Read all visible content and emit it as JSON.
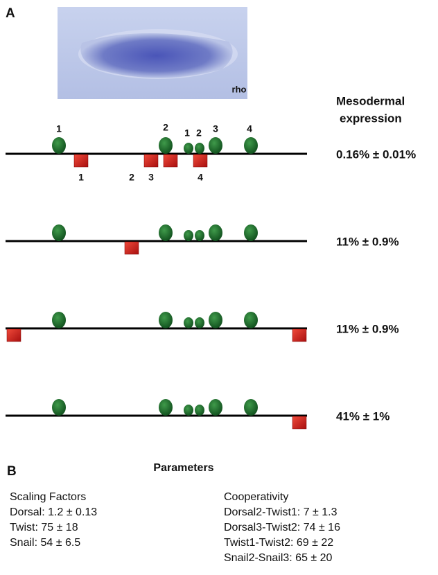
{
  "panel_a": {
    "label": "A",
    "image_label": "rho",
    "expression_header": [
      "Mesodermal",
      "expression"
    ],
    "activator_labels": [
      "1",
      "2",
      "1",
      "2",
      "3",
      "4"
    ],
    "repressor_labels": [
      "1",
      "2",
      "3",
      "4"
    ],
    "rows": [
      {
        "expression": "0.16% ± 0.01%"
      },
      {
        "expression": "11% ± 0.9%"
      },
      {
        "expression": "11% ± 0.9%"
      },
      {
        "expression": "41% ± 1%"
      }
    ]
  },
  "panel_b": {
    "label": "B",
    "title": "Parameters",
    "scaling": {
      "title": "Scaling Factors",
      "items": [
        "Dorsal: 1.2 ± 0.13",
        "Twist: 75 ± 18",
        "Snail: 54 ± 6.5"
      ]
    },
    "cooperativity": {
      "title": "Cooperativity",
      "items": [
        "Dorsal2-Twist1: 7 ± 1.3",
        "Dorsal3-Twist2: 74 ± 16",
        "Twist1-Twist2: 69 ± 22",
        "Snail2-Snail3: 65 ± 20"
      ]
    }
  }
}
